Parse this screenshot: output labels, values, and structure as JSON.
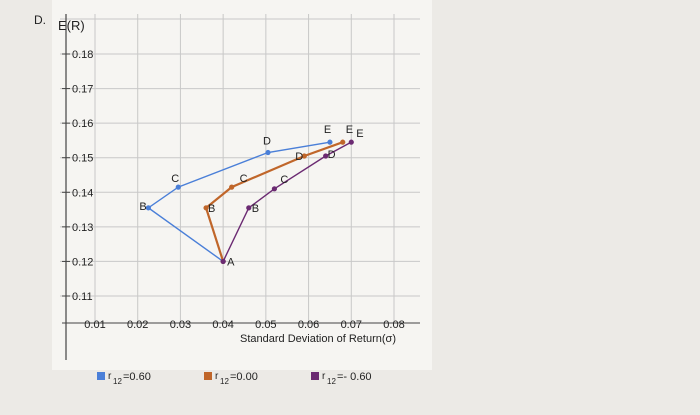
{
  "panel_label": "D.",
  "chart_data": {
    "type": "line",
    "title": "",
    "ylabel": "E(R)",
    "xlabel": "Standard Deviation of Return(σ)",
    "xlim": [
      0.01,
      0.08
    ],
    "ylim": [
      0.11,
      0.18
    ],
    "x_ticks": [
      "0.01",
      "0.02",
      "0.03",
      "0.04",
      "0.05",
      "0.06",
      "0.07",
      "0.08"
    ],
    "y_ticks": [
      "0.18",
      "0.17",
      "0.16",
      "0.15",
      "0.14",
      "0.13",
      "0.12",
      "0.11"
    ],
    "grid": true,
    "legend": {
      "placement": "bottom"
    },
    "series": [
      {
        "name": "r12=0.60",
        "legend_main": "r",
        "legend_sub": "12",
        "legend_value": "=0.60",
        "color": "#4a7fd8",
        "points": [
          {
            "label": "A",
            "x": 0.04,
            "y": 0.12,
            "show_label": false
          },
          {
            "label": "B",
            "x": 0.0225,
            "y": 0.1355,
            "show_label": true
          },
          {
            "label": "C",
            "x": 0.0295,
            "y": 0.1415,
            "show_label": true
          },
          {
            "label": "D",
            "x": 0.0505,
            "y": 0.1515,
            "show_label": true
          },
          {
            "label": "E",
            "x": 0.065,
            "y": 0.1545,
            "show_label": true
          }
        ]
      },
      {
        "name": "r12=0.00",
        "legend_main": "r",
        "legend_sub": "12",
        "legend_value": "=0.00",
        "color": "#c0662a",
        "points": [
          {
            "label": "A",
            "x": 0.04,
            "y": 0.12,
            "show_label": false
          },
          {
            "label": "B",
            "x": 0.036,
            "y": 0.1355,
            "show_label": true
          },
          {
            "label": "C",
            "x": 0.042,
            "y": 0.1415,
            "show_label": true
          },
          {
            "label": "D",
            "x": 0.059,
            "y": 0.1505,
            "show_label": true
          },
          {
            "label": "E",
            "x": 0.068,
            "y": 0.1545,
            "show_label": true
          }
        ]
      },
      {
        "name": "r12=-0.60",
        "legend_main": "r",
        "legend_sub": "12",
        "legend_value": "=- 0.60",
        "color": "#6b2a72",
        "points": [
          {
            "label": "A",
            "x": 0.04,
            "y": 0.12,
            "show_label": true
          },
          {
            "label": "B",
            "x": 0.046,
            "y": 0.1355,
            "show_label": true
          },
          {
            "label": "C",
            "x": 0.052,
            "y": 0.141,
            "show_label": true
          },
          {
            "label": "D",
            "x": 0.064,
            "y": 0.1505,
            "show_label": true
          },
          {
            "label": "E",
            "x": 0.07,
            "y": 0.1545,
            "show_label": true
          }
        ]
      }
    ]
  }
}
